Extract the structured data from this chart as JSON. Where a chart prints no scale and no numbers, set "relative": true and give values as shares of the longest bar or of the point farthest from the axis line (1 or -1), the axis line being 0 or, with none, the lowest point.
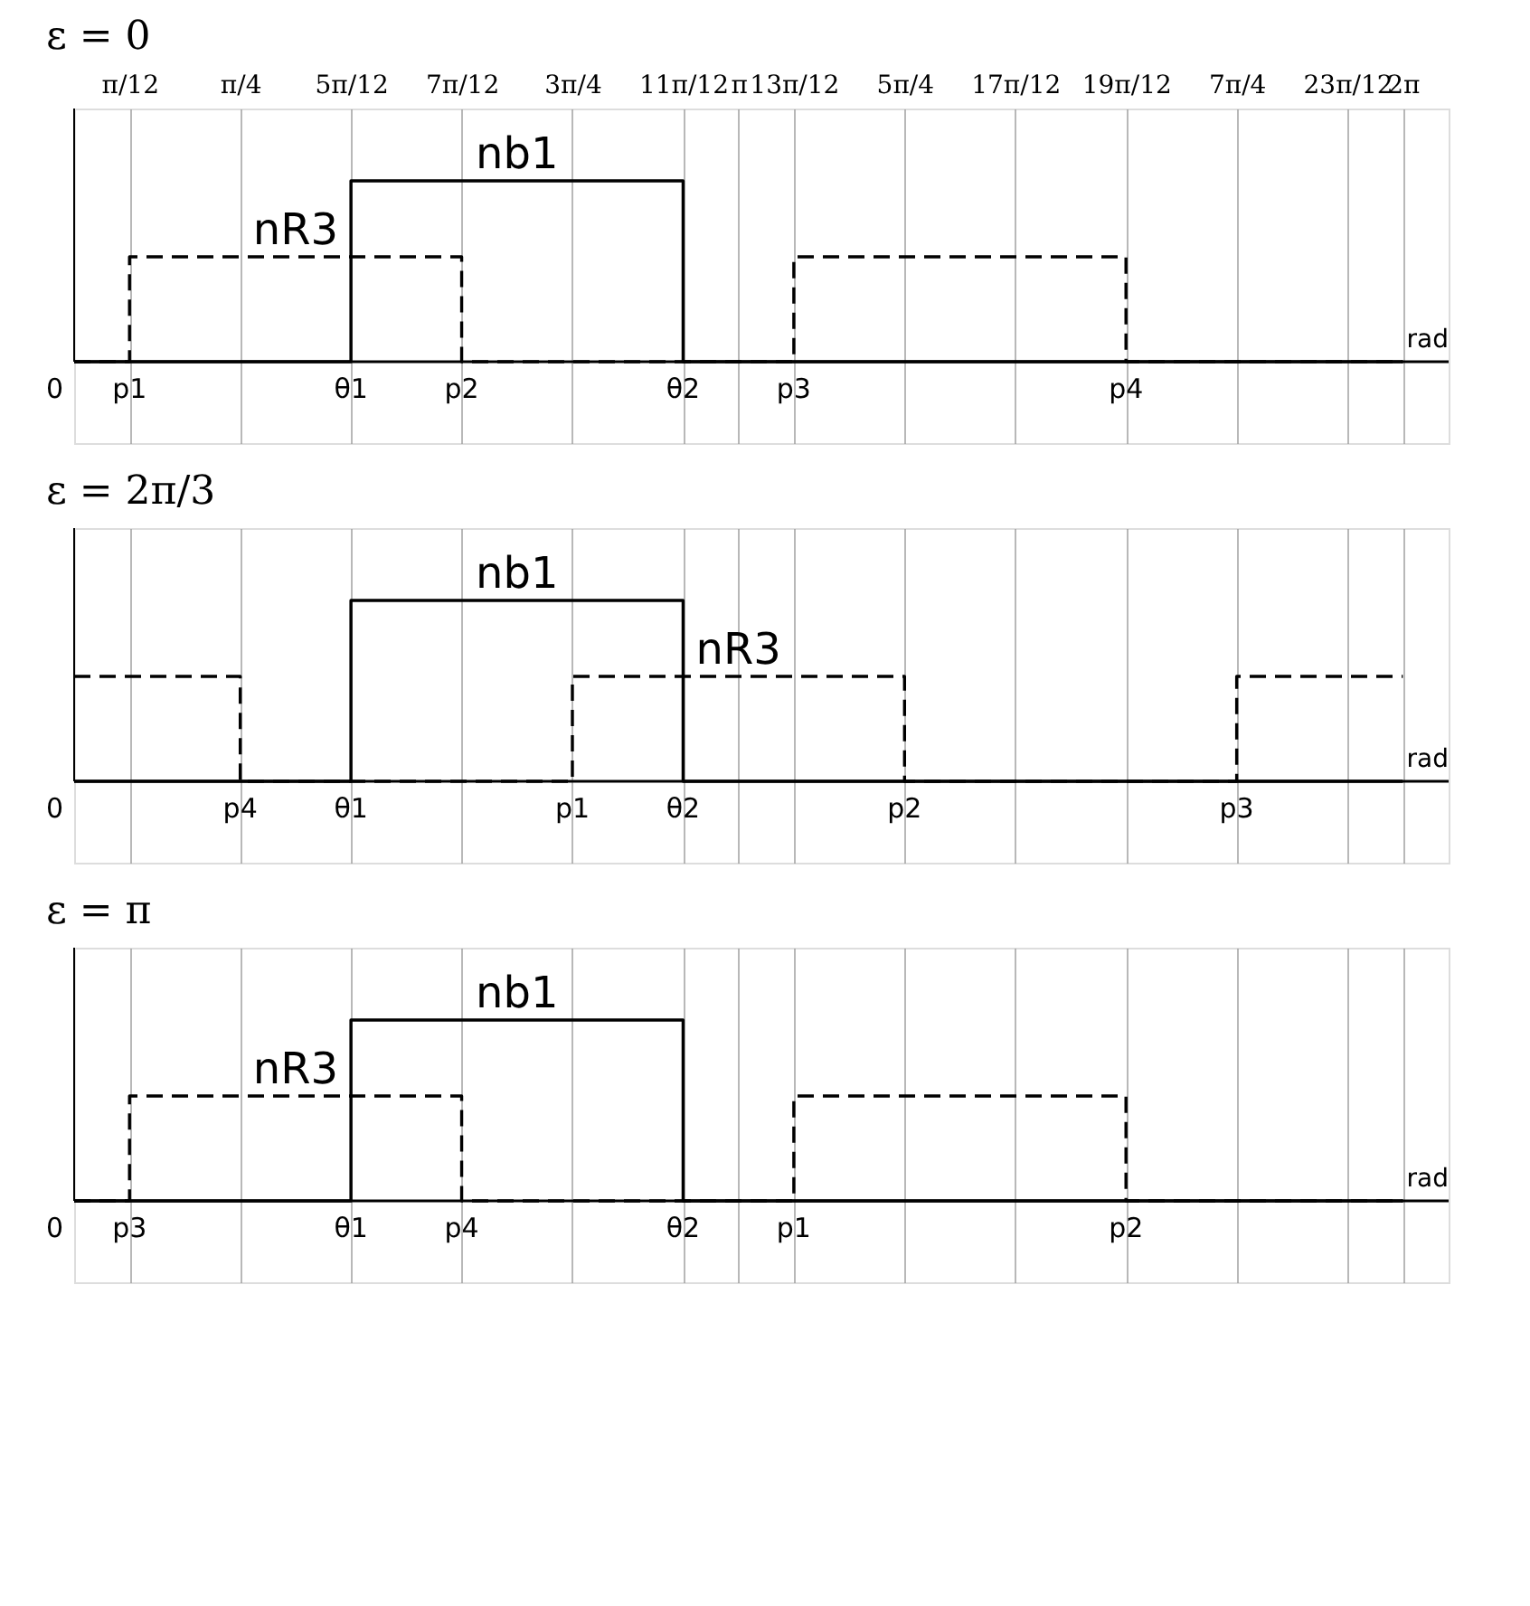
{
  "chart_data": [
    {
      "type": "step",
      "title": "ε = 0",
      "xlabel": "rad",
      "relative": true,
      "grid": "x",
      "line_style": "solid",
      "xlim": [
        0,
        6.5
      ],
      "xticks": [
        {
          "value": 0.2618,
          "label": "π/12"
        },
        {
          "value": 0.7854,
          "label": "π/4"
        },
        {
          "value": 1.309,
          "label": "5π/12"
        },
        {
          "value": 1.8326,
          "label": "7π/12"
        },
        {
          "value": 2.3562,
          "label": "3π/4"
        },
        {
          "value": 2.8798,
          "label": "11π/12"
        },
        {
          "value": 3.1416,
          "label": "π"
        },
        {
          "value": 3.4034,
          "label": "13π/12"
        },
        {
          "value": 3.927,
          "label": "5π/4"
        },
        {
          "value": 4.4506,
          "label": "17π/12"
        },
        {
          "value": 4.9742,
          "label": "19π/12"
        },
        {
          "value": 5.4978,
          "label": "7π/4"
        },
        {
          "value": 6.0214,
          "label": "23π/12"
        },
        {
          "value": 6.2832,
          "label": "2π"
        }
      ],
      "series": [
        {
          "name": "nb1",
          "color": "#000000",
          "x": [
            0,
            1.309,
            2.8798,
            6.2832
          ],
          "values": [
            0,
            1,
            0,
            0
          ]
        },
        {
          "name": "nR3",
          "color": "#000000",
          "line_style": "dashed",
          "x": [
            0,
            0.2618,
            1.8326,
            3.4034,
            4.9742,
            6.2832
          ],
          "values": [
            0,
            0.58,
            0,
            0.58,
            0,
            0
          ]
        }
      ],
      "annotations": [
        {
          "text": "0",
          "x": 0,
          "y": 0
        },
        {
          "text": "p1",
          "x": 0.2618,
          "y": 0
        },
        {
          "text": "θ1",
          "x": 1.309,
          "y": 0
        },
        {
          "text": "p2",
          "x": 1.8326,
          "y": 0
        },
        {
          "text": "θ2",
          "x": 2.8798,
          "y": 0
        },
        {
          "text": "p3",
          "x": 3.4034,
          "y": 0
        },
        {
          "text": "p4",
          "x": 4.9742,
          "y": 0
        }
      ]
    },
    {
      "type": "step",
      "title": "ε = 2π/3",
      "xlabel": "rad",
      "relative": true,
      "grid": "x",
      "tick_labels": false,
      "line_style": "solid",
      "xlim": [
        0,
        6.5
      ],
      "xticks": [
        {
          "value": 0.2618,
          "label": null
        },
        {
          "value": 0.7854,
          "label": null
        },
        {
          "value": 1.309,
          "label": null
        },
        {
          "value": 1.8326,
          "label": null
        },
        {
          "value": 2.3562,
          "label": null
        },
        {
          "value": 2.8798,
          "label": null
        },
        {
          "value": 3.1416,
          "label": null
        },
        {
          "value": 3.4034,
          "label": null
        },
        {
          "value": 3.927,
          "label": null
        },
        {
          "value": 4.4506,
          "label": null
        },
        {
          "value": 4.9742,
          "label": null
        },
        {
          "value": 5.4978,
          "label": null
        },
        {
          "value": 6.0214,
          "label": null
        },
        {
          "value": 6.2832,
          "label": null
        }
      ],
      "series": [
        {
          "name": "nb1",
          "color": "#000000",
          "x": [
            0,
            1.309,
            2.8798,
            6.2832
          ],
          "values": [
            0,
            1,
            0,
            0
          ]
        },
        {
          "name": "nR3",
          "color": "#000000",
          "line_style": "dashed",
          "x": [
            0,
            0.7854,
            2.3562,
            3.927,
            5.4978,
            6.2832
          ],
          "values": [
            0.58,
            0,
            0.58,
            0,
            0.58,
            0.58
          ]
        }
      ],
      "annotations": [
        {
          "text": "0",
          "x": 0,
          "y": 0
        },
        {
          "text": "p4",
          "x": 0.7854,
          "y": 0
        },
        {
          "text": "θ1",
          "x": 1.309,
          "y": 0
        },
        {
          "text": "p1",
          "x": 2.3562,
          "y": 0
        },
        {
          "text": "θ2",
          "x": 2.8798,
          "y": 0
        },
        {
          "text": "p2",
          "x": 3.927,
          "y": 0
        },
        {
          "text": "p3",
          "x": 5.4978,
          "y": 0
        }
      ]
    },
    {
      "type": "step",
      "title": "ε = π",
      "xlabel": "rad",
      "relative": true,
      "grid": "x",
      "tick_labels": false,
      "line_style": "solid",
      "xlim": [
        0,
        6.5
      ],
      "xticks": [
        {
          "value": 0.2618,
          "label": null
        },
        {
          "value": 0.7854,
          "label": null
        },
        {
          "value": 1.309,
          "label": null
        },
        {
          "value": 1.8326,
          "label": null
        },
        {
          "value": 2.3562,
          "label": null
        },
        {
          "value": 2.8798,
          "label": null
        },
        {
          "value": 3.1416,
          "label": null
        },
        {
          "value": 3.4034,
          "label": null
        },
        {
          "value": 3.927,
          "label": null
        },
        {
          "value": 4.4506,
          "label": null
        },
        {
          "value": 4.9742,
          "label": null
        },
        {
          "value": 5.4978,
          "label": null
        },
        {
          "value": 6.0214,
          "label": null
        },
        {
          "value": 6.2832,
          "label": null
        }
      ],
      "series": [
        {
          "name": "nb1",
          "color": "#000000",
          "x": [
            0,
            1.309,
            2.8798,
            6.2832
          ],
          "values": [
            0,
            1,
            0,
            0
          ]
        },
        {
          "name": "nR3",
          "color": "#000000",
          "line_style": "dashed",
          "x": [
            0,
            0.2618,
            1.8326,
            3.4034,
            4.9742,
            6.2832
          ],
          "values": [
            0,
            0.58,
            0,
            0.58,
            0,
            0
          ]
        }
      ],
      "annotations": [
        {
          "text": "0",
          "x": 0,
          "y": 0
        },
        {
          "text": "p3",
          "x": 0.2618,
          "y": 0
        },
        {
          "text": "θ1",
          "x": 1.309,
          "y": 0
        },
        {
          "text": "p4",
          "x": 1.8326,
          "y": 0
        },
        {
          "text": "θ2",
          "x": 2.8798,
          "y": 0
        },
        {
          "text": "p1",
          "x": 3.4034,
          "y": 0
        },
        {
          "text": "p2",
          "x": 4.9742,
          "y": 0
        }
      ]
    }
  ]
}
